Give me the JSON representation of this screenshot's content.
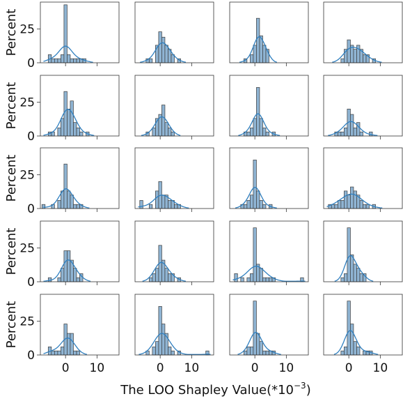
{
  "chart_data": {
    "type": "bar",
    "layout": {
      "rows": 5,
      "cols": 4
    },
    "xlabel_text": "The LOO Shapley Value(*10",
    "xlabel_exponent": "−3",
    "xlabel_suffix": ")",
    "ylabel": "Percent",
    "xlim": [
      -8,
      17
    ],
    "ylim": [
      0,
      45
    ],
    "xticks": [
      0,
      10
    ],
    "xtick_labels": [
      "0",
      "10"
    ],
    "yticks": [
      0,
      25
    ],
    "ytick_labels": [
      "0",
      "25"
    ],
    "bar_color": "#8fb4d3",
    "kde_color": "#2f7fbf",
    "panels": [
      {
        "bins": [
          [
            -5,
            6
          ],
          [
            -4,
            3
          ],
          [
            -3,
            3
          ],
          [
            -2,
            3
          ],
          [
            -1,
            6
          ],
          [
            0,
            43
          ],
          [
            1,
            6
          ],
          [
            2,
            3
          ],
          [
            3,
            3
          ],
          [
            4,
            3
          ],
          [
            5,
            3
          ],
          [
            6,
            3
          ]
        ]
      },
      {
        "bins": [
          [
            -4,
            3
          ],
          [
            -3,
            3
          ],
          [
            -1,
            13
          ],
          [
            0,
            23
          ],
          [
            1,
            19
          ],
          [
            2,
            13
          ],
          [
            3,
            10
          ],
          [
            4,
            6
          ],
          [
            6,
            3
          ]
        ]
      },
      {
        "bins": [
          [
            -3,
            3
          ],
          [
            -1,
            6
          ],
          [
            0,
            13
          ],
          [
            1,
            33
          ],
          [
            2,
            20
          ],
          [
            3,
            13
          ],
          [
            4,
            10
          ]
        ]
      },
      {
        "bins": [
          [
            -2,
            3
          ],
          [
            -1,
            10
          ],
          [
            0,
            17
          ],
          [
            1,
            13
          ],
          [
            2,
            10
          ],
          [
            3,
            13
          ],
          [
            4,
            10
          ],
          [
            5,
            6
          ],
          [
            6,
            6
          ],
          [
            8,
            3
          ]
        ]
      },
      {
        "bins": [
          [
            -5,
            3
          ],
          [
            -4,
            3
          ],
          [
            -2,
            6
          ],
          [
            -1,
            13
          ],
          [
            0,
            33
          ],
          [
            1,
            20
          ],
          [
            2,
            26
          ],
          [
            3,
            10
          ],
          [
            4,
            6
          ],
          [
            5,
            3
          ],
          [
            7,
            3
          ]
        ]
      },
      {
        "bins": [
          [
            -4,
            3
          ],
          [
            -2,
            6
          ],
          [
            -1,
            13
          ],
          [
            0,
            16
          ],
          [
            1,
            23
          ],
          [
            2,
            10
          ],
          [
            3,
            6
          ],
          [
            4,
            3
          ]
        ]
      },
      {
        "bins": [
          [
            -3,
            3
          ],
          [
            -2,
            3
          ],
          [
            -1,
            6
          ],
          [
            0,
            13
          ],
          [
            1,
            36
          ],
          [
            2,
            13
          ],
          [
            3,
            6
          ],
          [
            4,
            3
          ],
          [
            6,
            3
          ]
        ]
      },
      {
        "bins": [
          [
            -4,
            3
          ],
          [
            -3,
            3
          ],
          [
            -2,
            3
          ],
          [
            -1,
            6
          ],
          [
            0,
            20
          ],
          [
            1,
            16
          ],
          [
            2,
            6
          ],
          [
            3,
            10
          ],
          [
            4,
            3
          ],
          [
            7,
            3
          ]
        ]
      },
      {
        "bins": [
          [
            -7,
            3
          ],
          [
            -4,
            3
          ],
          [
            -2,
            6
          ],
          [
            -1,
            13
          ],
          [
            0,
            33
          ],
          [
            1,
            13
          ],
          [
            2,
            10
          ],
          [
            3,
            3
          ],
          [
            4,
            3
          ],
          [
            5,
            3
          ]
        ]
      },
      {
        "bins": [
          [
            -6,
            6
          ],
          [
            -3,
            3
          ],
          [
            -1,
            13
          ],
          [
            0,
            20
          ],
          [
            1,
            10
          ],
          [
            2,
            10
          ],
          [
            3,
            6
          ],
          [
            4,
            6
          ],
          [
            5,
            3
          ],
          [
            6,
            3
          ]
        ]
      },
      {
        "bins": [
          [
            -4,
            3
          ],
          [
            -3,
            3
          ],
          [
            -2,
            6
          ],
          [
            -1,
            10
          ],
          [
            0,
            36
          ],
          [
            1,
            13
          ],
          [
            2,
            6
          ],
          [
            3,
            3
          ],
          [
            5,
            3
          ]
        ]
      },
      {
        "bins": [
          [
            -6,
            3
          ],
          [
            -5,
            3
          ],
          [
            -4,
            3
          ],
          [
            -3,
            6
          ],
          [
            -2,
            6
          ],
          [
            -1,
            13
          ],
          [
            0,
            10
          ],
          [
            1,
            16
          ],
          [
            2,
            13
          ],
          [
            3,
            10
          ],
          [
            4,
            6
          ],
          [
            5,
            3
          ],
          [
            6,
            3
          ],
          [
            8,
            3
          ]
        ]
      },
      {
        "bins": [
          [
            -5,
            3
          ],
          [
            -2,
            3
          ],
          [
            -1,
            10
          ],
          [
            0,
            23
          ],
          [
            1,
            23
          ],
          [
            2,
            16
          ],
          [
            3,
            10
          ],
          [
            4,
            3
          ],
          [
            5,
            6
          ]
        ]
      },
      {
        "bins": [
          [
            -3,
            3
          ],
          [
            -2,
            6
          ],
          [
            -1,
            10
          ],
          [
            0,
            27
          ],
          [
            1,
            16
          ],
          [
            2,
            10
          ],
          [
            3,
            6
          ],
          [
            4,
            6
          ],
          [
            6,
            3
          ]
        ]
      },
      {
        "bins": [
          [
            -6,
            6
          ],
          [
            -4,
            3
          ],
          [
            -2,
            3
          ],
          [
            -1,
            6
          ],
          [
            0,
            40
          ],
          [
            1,
            13
          ],
          [
            2,
            10
          ],
          [
            3,
            3
          ],
          [
            4,
            3
          ],
          [
            5,
            3
          ],
          [
            6,
            3
          ],
          [
            15,
            3
          ]
        ]
      },
      {
        "bins": [
          [
            -2,
            3
          ],
          [
            -1,
            6
          ],
          [
            0,
            40
          ],
          [
            1,
            20
          ],
          [
            2,
            13
          ],
          [
            3,
            10
          ],
          [
            4,
            6
          ],
          [
            5,
            6
          ]
        ]
      },
      {
        "bins": [
          [
            -5,
            6
          ],
          [
            -4,
            3
          ],
          [
            -3,
            3
          ],
          [
            -2,
            3
          ],
          [
            -1,
            6
          ],
          [
            0,
            23
          ],
          [
            1,
            16
          ],
          [
            2,
            16
          ],
          [
            3,
            3
          ],
          [
            4,
            3
          ]
        ]
      },
      {
        "bins": [
          [
            -4,
            3
          ],
          [
            -2,
            6
          ],
          [
            -1,
            10
          ],
          [
            0,
            36
          ],
          [
            1,
            23
          ],
          [
            2,
            16
          ],
          [
            3,
            6
          ],
          [
            4,
            3
          ],
          [
            6,
            3
          ],
          [
            15,
            3
          ]
        ]
      },
      {
        "bins": [
          [
            -3,
            3
          ],
          [
            -2,
            6
          ],
          [
            -1,
            6
          ],
          [
            0,
            40
          ],
          [
            1,
            16
          ],
          [
            2,
            10
          ],
          [
            3,
            3
          ],
          [
            4,
            3
          ],
          [
            5,
            3
          ],
          [
            6,
            3
          ]
        ]
      },
      {
        "bins": [
          [
            -2,
            3
          ],
          [
            -1,
            6
          ],
          [
            0,
            40
          ],
          [
            1,
            23
          ],
          [
            2,
            10
          ],
          [
            3,
            6
          ],
          [
            5,
            3
          ],
          [
            6,
            3
          ],
          [
            7,
            3
          ]
        ]
      }
    ]
  }
}
